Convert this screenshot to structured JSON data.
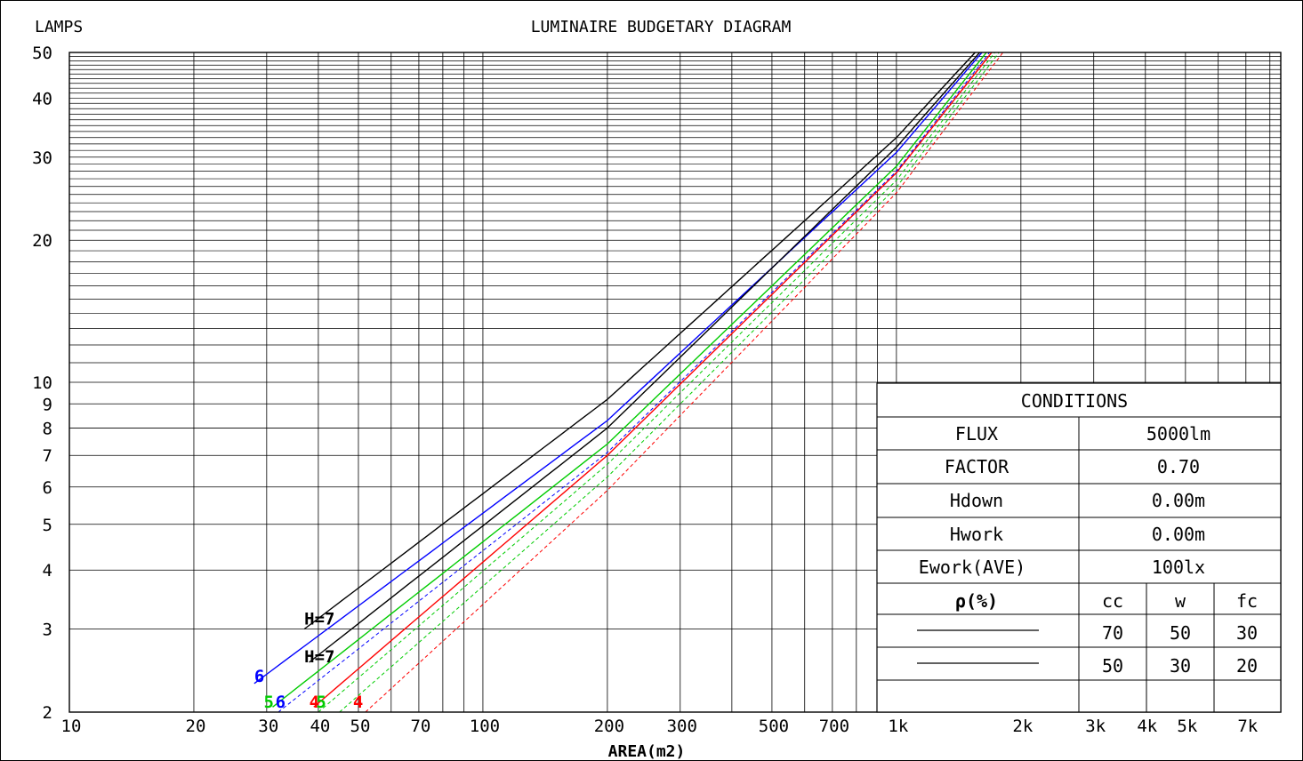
{
  "chart_data": {
    "type": "line",
    "title": "LUMINAIRE BUDGETARY DIAGRAM",
    "ylabel": "LAMPS",
    "xlabel": "AREA(m2)",
    "x_scale": "log",
    "y_scale": "log",
    "xlim": [
      10,
      8500
    ],
    "ylim": [
      2,
      50
    ],
    "grid": true,
    "x_ticks": [
      {
        "v": 10,
        "label": "10"
      },
      {
        "v": 20,
        "label": "20"
      },
      {
        "v": 30,
        "label": "30"
      },
      {
        "v": 40,
        "label": "40"
      },
      {
        "v": 50,
        "label": "50"
      },
      {
        "v": 70,
        "label": "70"
      },
      {
        "v": 100,
        "label": "100"
      },
      {
        "v": 200,
        "label": "200"
      },
      {
        "v": 300,
        "label": "300"
      },
      {
        "v": 500,
        "label": "500"
      },
      {
        "v": 700,
        "label": "700"
      },
      {
        "v": 1000,
        "label": "1k"
      },
      {
        "v": 2000,
        "label": "2k"
      },
      {
        "v": 3000,
        "label": "3k"
      },
      {
        "v": 4000,
        "label": "4k"
      },
      {
        "v": 5000,
        "label": "5k"
      },
      {
        "v": 7000,
        "label": "7k"
      }
    ],
    "y_ticks": [
      {
        "v": 2,
        "label": "2"
      },
      {
        "v": 3,
        "label": "3"
      },
      {
        "v": 4,
        "label": "4"
      },
      {
        "v": 5,
        "label": "5"
      },
      {
        "v": 6,
        "label": "6"
      },
      {
        "v": 7,
        "label": "7"
      },
      {
        "v": 8,
        "label": "8"
      },
      {
        "v": 9,
        "label": "9"
      },
      {
        "v": 10,
        "label": "10"
      },
      {
        "v": 20,
        "label": "20"
      },
      {
        "v": 30,
        "label": "30"
      },
      {
        "v": 40,
        "label": "40"
      },
      {
        "v": 50,
        "label": "50"
      }
    ],
    "series": [
      {
        "color": "#000000",
        "dash": false,
        "x": [
          37,
          200,
          1000,
          1550
        ],
        "y": [
          3.0,
          9.2,
          33.0,
          50.0
        ]
      },
      {
        "color": "#0000ff",
        "dash": false,
        "x": [
          28,
          200,
          1000,
          1610
        ],
        "y": [
          2.3,
          8.3,
          30.7,
          50.0
        ]
      },
      {
        "color": "#00cc00",
        "dash": false,
        "x": [
          31,
          200,
          1000,
          1650
        ],
        "y": [
          2.05,
          7.4,
          28.7,
          50.0
        ]
      },
      {
        "color": "#ff0000",
        "dash": false,
        "x": [
          39,
          200,
          1000,
          1700
        ],
        "y": [
          2.05,
          7.0,
          27.8,
          50.0
        ]
      },
      {
        "color": "#000000",
        "dash": false,
        "x": [
          38,
          200,
          1000,
          1590
        ],
        "y": [
          2.55,
          8.0,
          31.5,
          50.0
        ]
      },
      {
        "color": "#0000ff",
        "dash": true,
        "x": [
          32,
          200,
          1000,
          1680
        ],
        "y": [
          2.0,
          7.1,
          28.0,
          50.0
        ]
      },
      {
        "color": "#00cc00",
        "dash": true,
        "x": [
          40,
          200,
          1000,
          1730
        ],
        "y": [
          2.0,
          6.7,
          26.8,
          50.0
        ]
      },
      {
        "color": "#00cc00",
        "dash": true,
        "x": [
          45,
          200,
          1000,
          1770
        ],
        "y": [
          2.0,
          6.3,
          25.9,
          50.0
        ]
      },
      {
        "color": "#ff0000",
        "dash": true,
        "x": [
          52,
          200,
          1000,
          1810
        ],
        "y": [
          2.0,
          5.9,
          25.2,
          50.0
        ]
      }
    ],
    "annotations": [
      {
        "text": "H=7",
        "color": "#000000",
        "x": 37,
        "y": 3.15
      },
      {
        "text": "H=7",
        "color": "#000000",
        "x": 37,
        "y": 2.62
      },
      {
        "text": "6",
        "color": "#0000ff",
        "x": 28,
        "y": 2.38
      },
      {
        "text": "5",
        "color": "#00cc00",
        "x": 29.5,
        "y": 2.1
      },
      {
        "text": "6",
        "color": "#0000ff",
        "x": 31.5,
        "y": 2.1
      },
      {
        "text": "4",
        "color": "#ff0000",
        "x": 38,
        "y": 2.1
      },
      {
        "text": "5",
        "color": "#00cc00",
        "x": 39.5,
        "y": 2.1
      },
      {
        "text": "4",
        "color": "#ff0000",
        "x": 48.5,
        "y": 2.1
      }
    ]
  },
  "conditions": {
    "title": "CONDITIONS",
    "rows": [
      {
        "label": "FLUX",
        "value": "5000lm"
      },
      {
        "label": "FACTOR",
        "value": "0.70"
      },
      {
        "label": "Hdown",
        "value": "0.00m"
      },
      {
        "label": "Hwork",
        "value": "0.00m"
      },
      {
        "label": "Ework(AVE)",
        "value": "100lx"
      }
    ],
    "rho_label": "ρ(%)",
    "rho_headers": [
      "cc",
      "w",
      "fc"
    ],
    "rho_rows": [
      [
        "70",
        "50",
        "30"
      ],
      [
        "50",
        "30",
        "20"
      ]
    ]
  }
}
